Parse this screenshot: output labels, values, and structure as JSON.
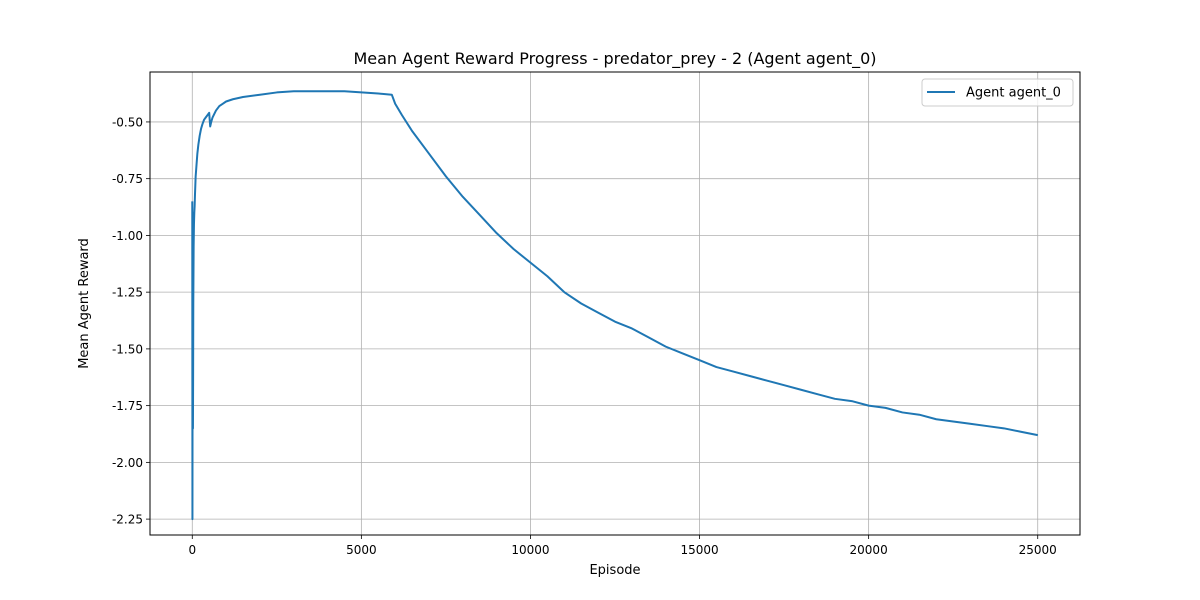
{
  "chart_data": {
    "type": "line",
    "title": "Mean Agent Reward Progress - predator_prey - 2 (Agent agent_0)",
    "xlabel": "Episode",
    "ylabel": "Mean Agent Reward",
    "xlim": [
      -1250,
      26250
    ],
    "ylim": [
      -2.32,
      -0.28
    ],
    "xticks": [
      0,
      5000,
      10000,
      15000,
      20000,
      25000
    ],
    "xtick_labels": [
      "0",
      "5000",
      "10000",
      "15000",
      "20000",
      "25000"
    ],
    "yticks": [
      -0.5,
      -0.75,
      -1.0,
      -1.25,
      -1.5,
      -1.75,
      -2.0,
      -2.25
    ],
    "ytick_labels": [
      "-0.50",
      "-0.75",
      "-1.00",
      "-1.25",
      "-1.50",
      "-1.75",
      "-2.00",
      "-2.25"
    ],
    "grid": true,
    "legend_position": "top-right",
    "series": [
      {
        "name": "Agent agent_0",
        "color": "#1f77b4",
        "x": [
          0,
          5,
          10,
          15,
          20,
          25,
          30,
          40,
          50,
          60,
          70,
          80,
          90,
          100,
          120,
          150,
          180,
          220,
          260,
          300,
          350,
          400,
          450,
          500,
          530,
          560,
          600,
          700,
          800,
          900,
          1000,
          1200,
          1500,
          2000,
          2500,
          3000,
          3500,
          4000,
          4500,
          5000,
          5500,
          5900,
          6000,
          6200,
          6500,
          7000,
          7500,
          8000,
          8500,
          9000,
          9500,
          10000,
          10500,
          11000,
          11500,
          12000,
          12500,
          13000,
          13500,
          14000,
          14500,
          15000,
          15500,
          16000,
          16500,
          17000,
          17500,
          18000,
          18500,
          19000,
          19500,
          20000,
          20500,
          21000,
          21500,
          22000,
          22500,
          23000,
          23500,
          24000,
          24500,
          25000
        ],
        "y": [
          -0.85,
          -2.25,
          -1.3,
          -0.9,
          -1.85,
          -1.6,
          -1.3,
          -1.05,
          -0.95,
          -0.9,
          -0.87,
          -0.82,
          -0.78,
          -0.74,
          -0.7,
          -0.64,
          -0.6,
          -0.56,
          -0.53,
          -0.51,
          -0.49,
          -0.48,
          -0.47,
          -0.46,
          -0.52,
          -0.5,
          -0.48,
          -0.45,
          -0.43,
          -0.42,
          -0.41,
          -0.4,
          -0.39,
          -0.38,
          -0.37,
          -0.365,
          -0.365,
          -0.365,
          -0.365,
          -0.37,
          -0.375,
          -0.38,
          -0.42,
          -0.47,
          -0.54,
          -0.64,
          -0.74,
          -0.83,
          -0.91,
          -0.99,
          -1.06,
          -1.12,
          -1.18,
          -1.25,
          -1.3,
          -1.34,
          -1.38,
          -1.41,
          -1.45,
          -1.49,
          -1.52,
          -1.55,
          -1.58,
          -1.6,
          -1.62,
          -1.64,
          -1.66,
          -1.68,
          -1.7,
          -1.72,
          -1.73,
          -1.75,
          -1.76,
          -1.78,
          -1.79,
          -1.81,
          -1.82,
          -1.83,
          -1.84,
          -1.85,
          -1.865,
          -1.88
        ]
      }
    ]
  }
}
